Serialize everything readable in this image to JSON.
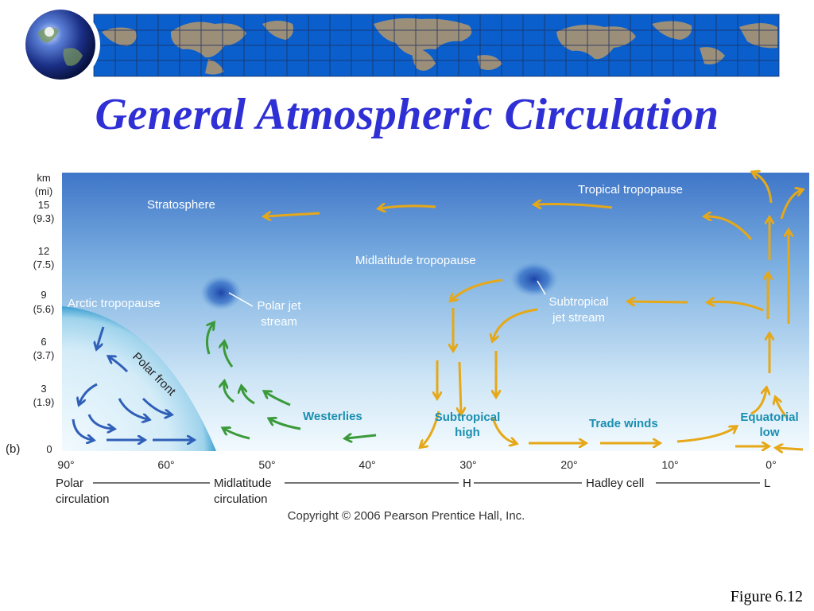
{
  "title": "General Atmospheric Circulation",
  "figure": {
    "label": "Figure",
    "number": "6.12"
  },
  "panel_label": "(b)",
  "y_axis": {
    "unit_km": "km",
    "unit_mi": "(mi)",
    "ticks": [
      {
        "km": "15",
        "mi": "(9.3)"
      },
      {
        "km": "12",
        "mi": "(7.5)"
      },
      {
        "km": "9",
        "mi": "(5.6)"
      },
      {
        "km": "6",
        "mi": "(3.7)"
      },
      {
        "km": "3",
        "mi": "(1.9)"
      },
      {
        "km": "0",
        "mi": ""
      }
    ]
  },
  "x_axis": {
    "ticks": [
      "90°",
      "60°",
      "50°",
      "40°",
      "30°",
      "20°",
      "10°",
      "0°"
    ]
  },
  "labels": {
    "stratosphere": "Stratosphere",
    "tropical_tropopause": "Tropical tropopause",
    "midlatitude_tropopause": "Midlatitude tropopause",
    "arctic_tropopause": "Arctic tropopause",
    "polar_jet_line1": "Polar jet",
    "polar_jet_line2": "stream",
    "subtropical_jet_line1": "Subtropical",
    "subtropical_jet_line2": "jet stream",
    "polar_front": "Polar front",
    "westerlies": "Westerlies",
    "subtropical_high_line1": "Subtropical",
    "subtropical_high_line2": "high",
    "trade_winds": "Trade winds",
    "equatorial_low_line1": "Equatorial",
    "equatorial_low_line2": "low"
  },
  "cells": {
    "polar_line1": "Polar",
    "polar_line2": "circulation",
    "midlatitude_line1": "Midlatitude",
    "midlatitude_line2": "circulation",
    "h": "H",
    "hadley": "Hadley cell",
    "l": "L"
  },
  "copyright": "Copyright © 2006 Pearson Prentice Hall, Inc.",
  "colors": {
    "title": "#2f2fd6",
    "banner_blue": "#0a5fcc",
    "land": "#9c8f7a",
    "polar_arrow": "#2f5fb8",
    "midlat_arrow": "#3a9a3a",
    "hadley_arrow": "#e6a817",
    "label_teal": "#1a8fb0"
  },
  "icons": {
    "globe": "globe-icon",
    "world_map": "world-map-banner"
  }
}
